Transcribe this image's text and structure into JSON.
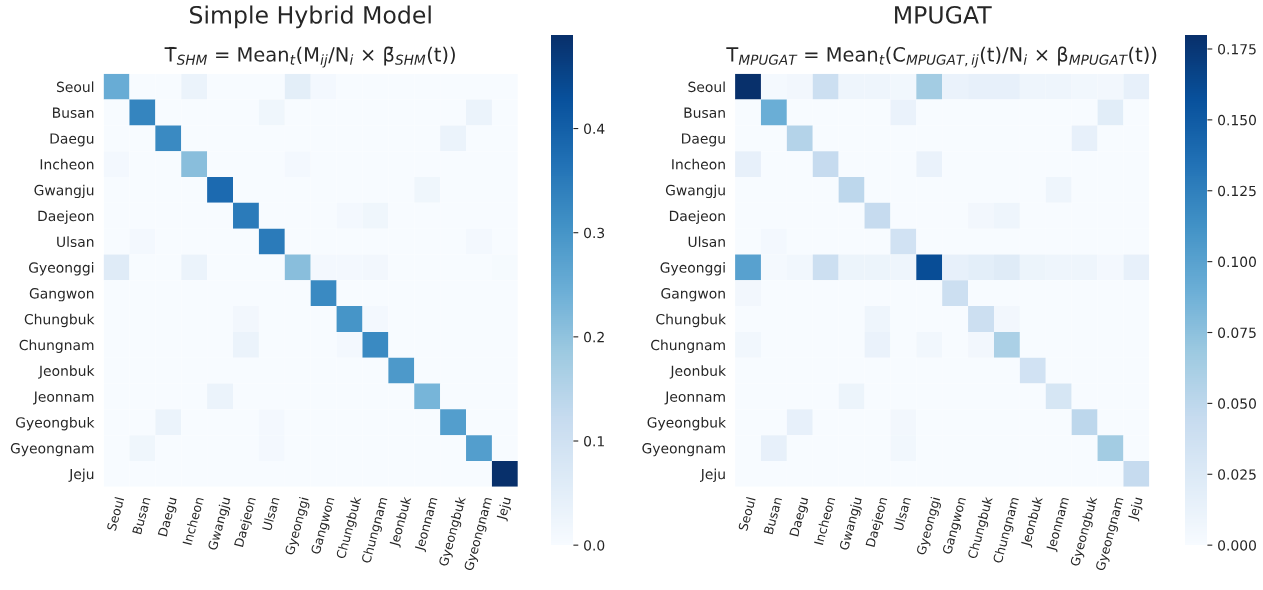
{
  "chart_data": [
    {
      "type": "heatmap",
      "title": "Simple Hybrid Model",
      "subtitle": "T̄$_{SHM}$ = Mean$_{t}$(M$_{ij}$/N$_{i}$ × β̄$_{SHM}$(t))",
      "categories": [
        "Seoul",
        "Busan",
        "Daegu",
        "Incheon",
        "Gwangju",
        "Daejeon",
        "Ulsan",
        "Gyeonggi",
        "Gangwon",
        "Chungbuk",
        "Chungnam",
        "Jeonbuk",
        "Jeonnam",
        "Gyeongbuk",
        "Gyeongnam",
        "Jeju"
      ],
      "y_categories": [
        "Seoul",
        "Busan",
        "Daegu",
        "Incheon",
        "Gwangju",
        "Daejeon",
        "Ulsan",
        "Gyeonggi",
        "Gangwon",
        "Chungbuk",
        "Chungnam",
        "Jeonbuk",
        "Jeonnam",
        "Gyeongbuk",
        "Gyeongnam",
        "Jeju"
      ],
      "cells": [
        [
          0.25,
          0,
          0,
          0.03,
          0,
          0,
          0,
          0.05,
          0.01,
          0,
          0,
          0,
          0,
          0,
          0,
          0
        ],
        [
          0,
          0.33,
          0,
          0,
          0,
          0,
          0.02,
          0,
          0,
          0,
          0,
          0,
          0,
          0,
          0.03,
          0
        ],
        [
          0,
          0,
          0.32,
          0,
          0,
          0,
          0,
          0,
          0,
          0,
          0,
          0,
          0,
          0.03,
          0,
          0
        ],
        [
          0.01,
          0,
          0,
          0.21,
          0,
          0,
          0,
          0.01,
          0,
          0,
          0,
          0,
          0,
          0,
          0,
          0
        ],
        [
          0,
          0,
          0,
          0,
          0.38,
          0,
          0,
          0,
          0,
          0,
          0,
          0,
          0.02,
          0,
          0,
          0
        ],
        [
          0,
          0,
          0,
          0,
          0,
          0.35,
          0,
          0,
          0,
          0.01,
          0.02,
          0,
          0,
          0,
          0,
          0
        ],
        [
          0,
          0.01,
          0,
          0,
          0,
          0,
          0.35,
          0,
          0,
          0,
          0,
          0,
          0,
          0,
          0.01,
          0
        ],
        [
          0.06,
          0,
          0,
          0.03,
          0,
          0,
          0,
          0.21,
          0.01,
          0.01,
          0.015,
          0,
          0,
          0,
          0,
          0.005
        ],
        [
          0,
          0,
          0,
          0,
          0,
          0,
          0,
          0,
          0.32,
          0,
          0,
          0,
          0,
          0,
          0,
          0
        ],
        [
          0,
          0,
          0,
          0,
          0,
          0.015,
          0,
          0,
          0,
          0.3,
          0.01,
          0,
          0,
          0,
          0,
          0
        ],
        [
          0,
          0,
          0,
          0,
          0,
          0.03,
          0,
          0,
          0,
          0.01,
          0.32,
          0,
          0,
          0,
          0,
          0
        ],
        [
          0,
          0,
          0,
          0,
          0,
          0,
          0,
          0,
          0,
          0,
          0,
          0.29,
          0,
          0,
          0,
          0
        ],
        [
          0,
          0,
          0,
          0,
          0.03,
          0,
          0,
          0,
          0,
          0,
          0,
          0,
          0.23,
          0,
          0,
          0
        ],
        [
          0,
          0,
          0.03,
          0,
          0,
          0,
          0.01,
          0,
          0,
          0,
          0,
          0,
          0,
          0.28,
          0,
          0
        ],
        [
          0,
          0.02,
          0,
          0,
          0,
          0,
          0.01,
          0,
          0,
          0,
          0,
          0,
          0,
          0,
          0.28,
          0
        ],
        [
          0,
          0,
          0,
          0,
          0,
          0,
          0,
          0,
          0,
          0,
          0,
          0,
          0,
          0,
          0,
          0.49
        ]
      ],
      "clim": [
        0,
        0.49
      ],
      "cticks": [
        {
          "value": 0,
          "label": "0.0"
        },
        {
          "value": 0.1,
          "label": "0.1"
        },
        {
          "value": 0.2,
          "label": "0.2"
        },
        {
          "value": 0.3,
          "label": "0.3"
        },
        {
          "value": 0.4,
          "label": "0.4"
        }
      ]
    },
    {
      "type": "heatmap",
      "title": "MPUGAT",
      "subtitle": "T$_{MPUGAT}$ = Mean$_{t}$(C$_{MPUGAT,ij}$(t)/N$_{i}$ × β$_{MPUGAT}$(t))",
      "categories": [
        "Seoul",
        "Busan",
        "Daegu",
        "Incheon",
        "Gwangju",
        "Daejeon",
        "Ulsan",
        "Gyeonggi",
        "Gangwon",
        "Chungbuk",
        "Chungnam",
        "Jeonbuk",
        "Jeonnam",
        "Gyeongbuk",
        "Gyeongnam",
        "Jeju"
      ],
      "y_categories": [
        "Seoul",
        "Busan",
        "Daegu",
        "Incheon",
        "Gwangju",
        "Daejeon",
        "Ulsan",
        "Gyeonggi",
        "Gangwon",
        "Chungbuk",
        "Chungnam",
        "Jeonbuk",
        "Jeonnam",
        "Gyeongbuk",
        "Gyeongnam",
        "Jeju"
      ],
      "cells": [
        [
          0.18,
          0.003,
          0.005,
          0.04,
          0.008,
          0.008,
          0.006,
          0.065,
          0.012,
          0.015,
          0.015,
          0.008,
          0.008,
          0.006,
          0.005,
          0.015
        ],
        [
          0,
          0.09,
          0,
          0,
          0,
          0,
          0.012,
          0,
          0,
          0,
          0,
          0,
          0,
          0,
          0.02,
          0
        ],
        [
          0,
          0,
          0.055,
          0,
          0,
          0,
          0,
          0,
          0,
          0,
          0,
          0,
          0,
          0.015,
          0,
          0
        ],
        [
          0.015,
          0,
          0,
          0.045,
          0,
          0,
          0,
          0.012,
          0,
          0,
          0,
          0,
          0,
          0,
          0,
          0
        ],
        [
          0,
          0,
          0,
          0,
          0.05,
          0,
          0,
          0,
          0,
          0,
          0,
          0,
          0.008,
          0,
          0,
          0
        ],
        [
          0,
          0,
          0,
          0,
          0,
          0.045,
          0,
          0,
          0,
          0.005,
          0.008,
          0,
          0,
          0,
          0,
          0
        ],
        [
          0,
          0.004,
          0,
          0,
          0,
          0,
          0.035,
          0,
          0,
          0,
          0,
          0,
          0,
          0,
          0,
          0
        ],
        [
          0.1,
          0.003,
          0.006,
          0.04,
          0.01,
          0.01,
          0.008,
          0.16,
          0.015,
          0.018,
          0.022,
          0.01,
          0.008,
          0.008,
          0.004,
          0.015
        ],
        [
          0.005,
          0,
          0,
          0,
          0,
          0,
          0,
          0,
          0.04,
          0,
          0,
          0,
          0,
          0,
          0,
          0
        ],
        [
          0,
          0,
          0,
          0,
          0,
          0.008,
          0,
          0,
          0,
          0.04,
          0.005,
          0,
          0,
          0,
          0,
          0
        ],
        [
          0.006,
          0,
          0,
          0,
          0,
          0.012,
          0,
          0.006,
          0,
          0.005,
          0.06,
          0,
          0,
          0,
          0,
          0
        ],
        [
          0,
          0,
          0,
          0,
          0,
          0,
          0,
          0,
          0,
          0,
          0,
          0.035,
          0,
          0,
          0,
          0
        ],
        [
          0,
          0,
          0,
          0,
          0.01,
          0,
          0,
          0,
          0,
          0,
          0,
          0,
          0.03,
          0,
          0,
          0
        ],
        [
          0,
          0,
          0.015,
          0,
          0,
          0,
          0.005,
          0,
          0,
          0,
          0,
          0,
          0,
          0.05,
          0,
          0
        ],
        [
          0,
          0.015,
          0,
          0,
          0,
          0,
          0.006,
          0,
          0,
          0,
          0,
          0,
          0,
          0,
          0.065,
          0
        ],
        [
          0,
          0,
          0,
          0,
          0,
          0,
          0,
          0,
          0,
          0,
          0,
          0,
          0,
          0,
          0,
          0.045
        ]
      ],
      "clim": [
        0,
        0.18
      ],
      "cticks": [
        {
          "value": 0,
          "label": "0.000"
        },
        {
          "value": 0.025,
          "label": "0.025"
        },
        {
          "value": 0.05,
          "label": "0.050"
        },
        {
          "value": 0.075,
          "label": "0.075"
        },
        {
          "value": 0.1,
          "label": "0.100"
        },
        {
          "value": 0.125,
          "label": "0.125"
        },
        {
          "value": 0.15,
          "label": "0.150"
        },
        {
          "value": 0.175,
          "label": "0.175"
        }
      ]
    }
  ]
}
